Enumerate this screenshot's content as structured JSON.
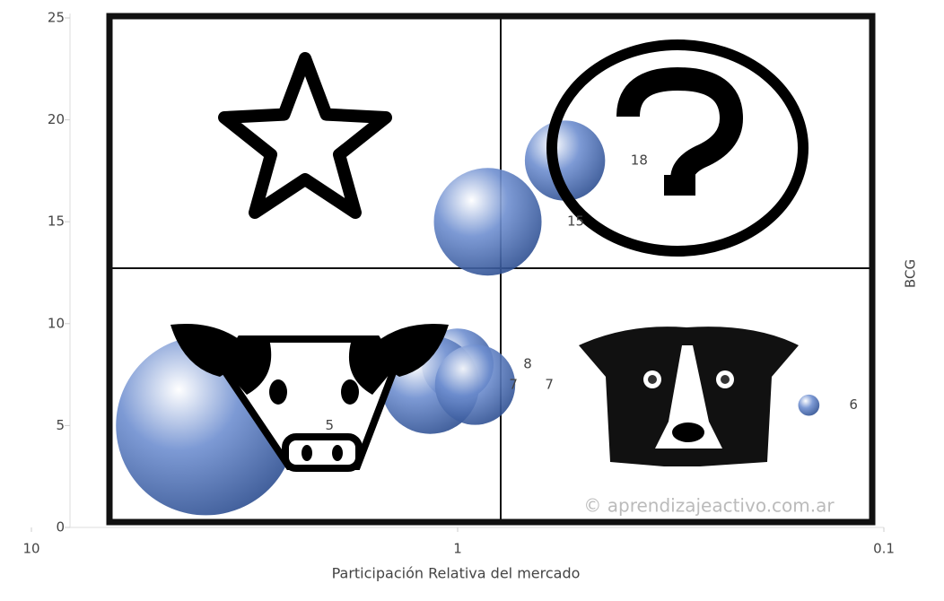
{
  "chart_data": {
    "type": "bubble",
    "title": "BCG",
    "x_label": "Participación Relativa del mercado",
    "watermark": "© aprendizajeactivo.com.ar",
    "x": [
      0.56,
      0.85,
      1.0,
      1.16,
      0.91,
      3.9,
      0.15
    ],
    "series": [
      {
        "color": "#6f8fd0",
        "values": [
          18,
          15,
          8,
          7,
          7,
          5,
          6
        ],
        "sizes": [
          20,
          36,
          16,
          30,
          20,
          100,
          1.4
        ]
      }
    ],
    "xscale": "log",
    "xlim": [
      10,
      0.1
    ],
    "xticks": [
      10,
      1,
      0.1
    ],
    "ylim": [
      0,
      25
    ],
    "yticks": [
      0,
      5,
      10,
      15,
      20,
      25
    ]
  }
}
